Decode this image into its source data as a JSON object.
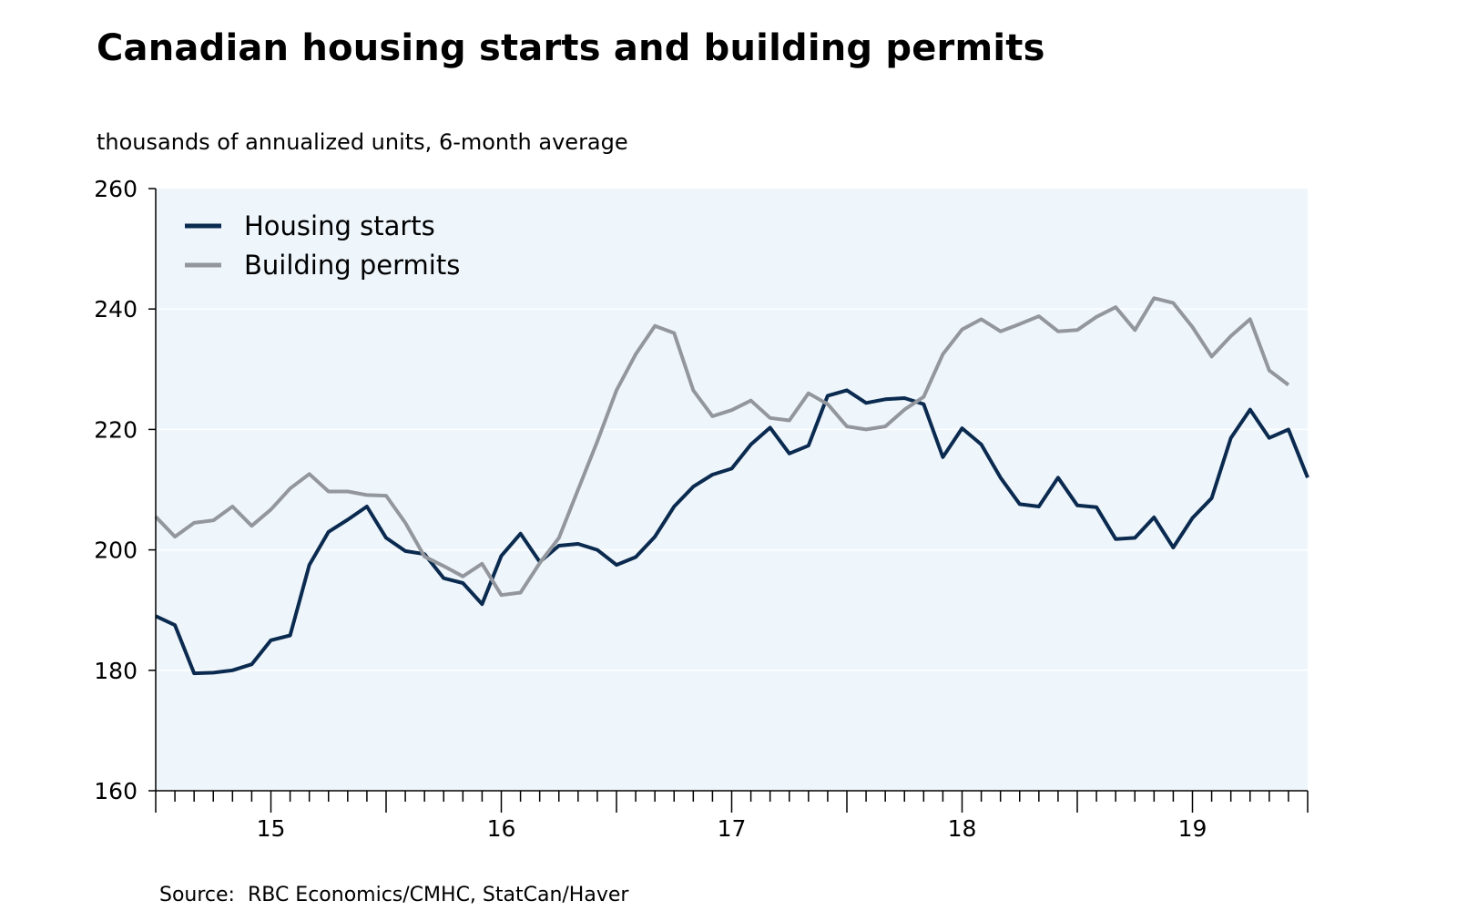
{
  "chart_data": {
    "type": "line",
    "title": "Canadian housing starts and building permits",
    "subtitle": "thousands of annualized units, 6-month average",
    "source": "Source:  RBC Economics/CMHC, StatCan/Haver",
    "xlabel": "",
    "ylabel": "thousands of annualized units, 6-month average",
    "ylim": [
      160,
      260
    ],
    "yticks": [
      160,
      180,
      200,
      220,
      240,
      260
    ],
    "x_start": "2014-07",
    "x_end": "2019-07",
    "x_tick_labels": [
      "15",
      "16",
      "17",
      "18",
      "19"
    ],
    "grid": true,
    "legend_position": "top-left",
    "colors": {
      "plot_background": "#eef6fc",
      "gridline": "#ffffff",
      "housing_starts": "#0b2a4f",
      "building_permits": "#93979d"
    },
    "series": [
      {
        "name": "Housing starts",
        "color": "#0b2a4f",
        "values": [
          189.0,
          187.5,
          179.5,
          179.6,
          180.0,
          181.0,
          185.0,
          185.8,
          197.5,
          203.0,
          205.0,
          207.2,
          202.0,
          199.8,
          199.3,
          195.3,
          194.5,
          191.0,
          199.0,
          202.7,
          198.0,
          200.7,
          201.0,
          200.0,
          197.5,
          198.8,
          202.2,
          207.2,
          210.5,
          212.5,
          213.5,
          217.5,
          220.3,
          216.0,
          217.3,
          225.6,
          226.5,
          224.4,
          225.0,
          225.2,
          224.2,
          215.4,
          220.2,
          217.5,
          212.0,
          207.6,
          207.2,
          212.0,
          207.4,
          207.1,
          201.8,
          202.0,
          205.4,
          200.4,
          205.3,
          208.6,
          218.6,
          223.3,
          218.6,
          220.0,
          212.0
        ]
      },
      {
        "name": "Building permits",
        "color": "#93979d",
        "values": [
          205.5,
          202.2,
          204.5,
          204.9,
          207.2,
          204.0,
          206.7,
          210.2,
          212.6,
          209.7,
          209.7,
          209.1,
          209.0,
          204.5,
          198.9,
          197.3,
          195.6,
          197.7,
          192.5,
          192.9,
          197.8,
          202.0,
          210.0,
          218.0,
          226.5,
          232.5,
          237.2,
          236.0,
          226.5,
          222.2,
          223.2,
          224.8,
          221.9,
          221.5,
          226.0,
          224.2,
          220.5,
          220.0,
          220.5,
          223.3,
          225.4,
          232.5,
          236.6,
          238.3,
          236.3,
          237.5,
          238.8,
          236.3,
          236.5,
          238.7,
          240.3,
          236.5,
          241.8,
          241.0,
          237.0,
          232.1,
          235.5,
          238.3,
          229.8,
          227.4
        ]
      }
    ]
  }
}
